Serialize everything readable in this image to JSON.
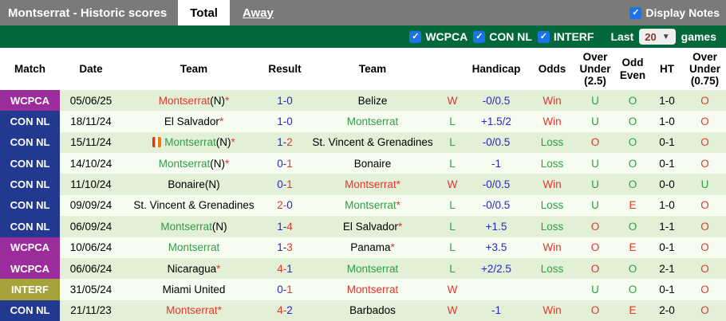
{
  "topbar": {
    "title": "Montserrat - Historic scores",
    "tab_total": "Total",
    "tab_away": "Away",
    "display_notes_label": "Display Notes"
  },
  "filterbar": {
    "checkboxes": [
      "WCPCA",
      "CON NL",
      "INTERF"
    ],
    "last_label": "Last",
    "games_count": "20",
    "games_label": "games"
  },
  "colors": {
    "red": "#e5352c",
    "green": "#2f9e44",
    "blue": "#2727cf",
    "topbar": "#7a7a7a",
    "filterbar": "#04693a",
    "checkbox": "#1a73e8",
    "badge-wcpca": "#9b2c9b",
    "badge-connl": "#213a8f",
    "badge-interf": "#a6a23c",
    "row-green": "#e1f0d6",
    "row-white": "#f7fcf1"
  },
  "table": {
    "headers": [
      "Match",
      "Date",
      "Team",
      "Result",
      "Team",
      "",
      "Handicap",
      "Odds",
      "Over Under (2.5)",
      "Odd Even",
      "HT",
      "Over Under (0.75)"
    ],
    "rows": [
      {
        "comp": {
          "label": "WCPCA",
          "color": "wcpca"
        },
        "date": "05/06/25",
        "home": {
          "name": "Montserrat",
          "suffix": "(N)",
          "star": true,
          "color": "red",
          "icon": false
        },
        "score": [
          {
            "t": "1",
            "c": "blue"
          },
          {
            "t": "0",
            "c": "blue"
          }
        ],
        "away": {
          "name": "Belize",
          "suffix": "",
          "star": false,
          "color": "black"
        },
        "wl": {
          "t": "W",
          "c": "red"
        },
        "handicap": {
          "t": "-0/0.5",
          "c": "blue"
        },
        "odds": {
          "t": "Win",
          "c": "red"
        },
        "ou25": {
          "t": "U",
          "c": "green"
        },
        "oe": {
          "t": "O",
          "c": "green"
        },
        "ht": {
          "t": "1-0",
          "c": "black"
        },
        "ou075": {
          "t": "O",
          "c": "red"
        }
      },
      {
        "comp": {
          "label": "CON NL",
          "color": "connl"
        },
        "date": "18/11/24",
        "home": {
          "name": "El Salvador",
          "suffix": "",
          "star": true,
          "color": "black",
          "icon": false
        },
        "score": [
          {
            "t": "1",
            "c": "blue"
          },
          {
            "t": "0",
            "c": "blue"
          }
        ],
        "away": {
          "name": "Montserrat",
          "suffix": "",
          "star": false,
          "color": "green"
        },
        "wl": {
          "t": "L",
          "c": "green"
        },
        "handicap": {
          "t": "+1.5/2",
          "c": "blue"
        },
        "odds": {
          "t": "Win",
          "c": "red"
        },
        "ou25": {
          "t": "U",
          "c": "green"
        },
        "oe": {
          "t": "O",
          "c": "green"
        },
        "ht": {
          "t": "1-0",
          "c": "black"
        },
        "ou075": {
          "t": "O",
          "c": "red"
        }
      },
      {
        "comp": {
          "label": "CON NL",
          "color": "connl"
        },
        "date": "15/11/24",
        "home": {
          "name": "Montserrat",
          "suffix": "(N)",
          "star": true,
          "color": "green",
          "icon": true
        },
        "score": [
          {
            "t": "1",
            "c": "blue"
          },
          {
            "t": "2",
            "c": "red"
          }
        ],
        "away": {
          "name": "St. Vincent & Grenadines",
          "suffix": "",
          "star": false,
          "color": "black"
        },
        "wl": {
          "t": "L",
          "c": "green"
        },
        "handicap": {
          "t": "-0/0.5",
          "c": "blue"
        },
        "odds": {
          "t": "Loss",
          "c": "green"
        },
        "ou25": {
          "t": "O",
          "c": "red"
        },
        "oe": {
          "t": "O",
          "c": "green"
        },
        "ht": {
          "t": "0-1",
          "c": "black"
        },
        "ou075": {
          "t": "O",
          "c": "red"
        }
      },
      {
        "comp": {
          "label": "CON NL",
          "color": "connl"
        },
        "date": "14/10/24",
        "home": {
          "name": "Montserrat",
          "suffix": "(N)",
          "star": true,
          "color": "green",
          "icon": false
        },
        "score": [
          {
            "t": "0",
            "c": "blue"
          },
          {
            "t": "1",
            "c": "red"
          }
        ],
        "away": {
          "name": "Bonaire",
          "suffix": "",
          "star": false,
          "color": "black"
        },
        "wl": {
          "t": "L",
          "c": "green"
        },
        "handicap": {
          "t": "-1",
          "c": "blue"
        },
        "odds": {
          "t": "Loss",
          "c": "green"
        },
        "ou25": {
          "t": "U",
          "c": "green"
        },
        "oe": {
          "t": "O",
          "c": "green"
        },
        "ht": {
          "t": "0-1",
          "c": "black"
        },
        "ou075": {
          "t": "O",
          "c": "red"
        }
      },
      {
        "comp": {
          "label": "CON NL",
          "color": "connl"
        },
        "date": "11/10/24",
        "home": {
          "name": "Bonaire",
          "suffix": "(N)",
          "star": false,
          "color": "black",
          "icon": false
        },
        "score": [
          {
            "t": "0",
            "c": "blue"
          },
          {
            "t": "1",
            "c": "red"
          }
        ],
        "away": {
          "name": "Montserrat",
          "suffix": "",
          "star": true,
          "color": "red"
        },
        "wl": {
          "t": "W",
          "c": "red"
        },
        "handicap": {
          "t": "-0/0.5",
          "c": "blue"
        },
        "odds": {
          "t": "Win",
          "c": "red"
        },
        "ou25": {
          "t": "U",
          "c": "green"
        },
        "oe": {
          "t": "O",
          "c": "green"
        },
        "ht": {
          "t": "0-0",
          "c": "black"
        },
        "ou075": {
          "t": "U",
          "c": "green"
        }
      },
      {
        "comp": {
          "label": "CON NL",
          "color": "connl"
        },
        "date": "09/09/24",
        "home": {
          "name": "St. Vincent & Grenadines",
          "suffix": "",
          "star": false,
          "color": "black",
          "icon": false
        },
        "score": [
          {
            "t": "2",
            "c": "red"
          },
          {
            "t": "0",
            "c": "blue"
          }
        ],
        "away": {
          "name": "Montserrat",
          "suffix": "",
          "star": true,
          "color": "green"
        },
        "wl": {
          "t": "L",
          "c": "green"
        },
        "handicap": {
          "t": "-0/0.5",
          "c": "blue"
        },
        "odds": {
          "t": "Loss",
          "c": "green"
        },
        "ou25": {
          "t": "U",
          "c": "green"
        },
        "oe": {
          "t": "E",
          "c": "red"
        },
        "ht": {
          "t": "1-0",
          "c": "black"
        },
        "ou075": {
          "t": "O",
          "c": "red"
        }
      },
      {
        "comp": {
          "label": "CON NL",
          "color": "connl"
        },
        "date": "06/09/24",
        "home": {
          "name": "Montserrat",
          "suffix": "(N)",
          "star": false,
          "color": "green",
          "icon": false
        },
        "score": [
          {
            "t": "1",
            "c": "blue"
          },
          {
            "t": "4",
            "c": "red"
          }
        ],
        "away": {
          "name": "El Salvador",
          "suffix": "",
          "star": true,
          "color": "black"
        },
        "wl": {
          "t": "L",
          "c": "green"
        },
        "handicap": {
          "t": "+1.5",
          "c": "blue"
        },
        "odds": {
          "t": "Loss",
          "c": "green"
        },
        "ou25": {
          "t": "O",
          "c": "red"
        },
        "oe": {
          "t": "O",
          "c": "green"
        },
        "ht": {
          "t": "1-1",
          "c": "black"
        },
        "ou075": {
          "t": "O",
          "c": "red"
        }
      },
      {
        "comp": {
          "label": "WCPCA",
          "color": "wcpca"
        },
        "date": "10/06/24",
        "home": {
          "name": "Montserrat",
          "suffix": "",
          "star": false,
          "color": "green",
          "icon": false
        },
        "score": [
          {
            "t": "1",
            "c": "blue"
          },
          {
            "t": "3",
            "c": "red"
          }
        ],
        "away": {
          "name": "Panama",
          "suffix": "",
          "star": true,
          "color": "black"
        },
        "wl": {
          "t": "L",
          "c": "green"
        },
        "handicap": {
          "t": "+3.5",
          "c": "blue"
        },
        "odds": {
          "t": "Win",
          "c": "red"
        },
        "ou25": {
          "t": "O",
          "c": "red"
        },
        "oe": {
          "t": "E",
          "c": "red"
        },
        "ht": {
          "t": "0-1",
          "c": "black"
        },
        "ou075": {
          "t": "O",
          "c": "red"
        }
      },
      {
        "comp": {
          "label": "WCPCA",
          "color": "wcpca"
        },
        "date": "06/06/24",
        "home": {
          "name": "Nicaragua",
          "suffix": "",
          "star": true,
          "color": "black",
          "icon": false
        },
        "score": [
          {
            "t": "4",
            "c": "red"
          },
          {
            "t": "1",
            "c": "blue"
          }
        ],
        "away": {
          "name": "Montserrat",
          "suffix": "",
          "star": false,
          "color": "green"
        },
        "wl": {
          "t": "L",
          "c": "green"
        },
        "handicap": {
          "t": "+2/2.5",
          "c": "blue"
        },
        "odds": {
          "t": "Loss",
          "c": "green"
        },
        "ou25": {
          "t": "O",
          "c": "red"
        },
        "oe": {
          "t": "O",
          "c": "green"
        },
        "ht": {
          "t": "2-1",
          "c": "black"
        },
        "ou075": {
          "t": "O",
          "c": "red"
        }
      },
      {
        "comp": {
          "label": "INTERF",
          "color": "interf"
        },
        "date": "31/05/24",
        "home": {
          "name": "Miami United",
          "suffix": "",
          "star": false,
          "color": "black",
          "icon": false
        },
        "score": [
          {
            "t": "0",
            "c": "blue"
          },
          {
            "t": "1",
            "c": "red"
          }
        ],
        "away": {
          "name": "Montserrat",
          "suffix": "",
          "star": false,
          "color": "red"
        },
        "wl": {
          "t": "W",
          "c": "red"
        },
        "handicap": {
          "t": "",
          "c": "blue"
        },
        "odds": {
          "t": "",
          "c": "black"
        },
        "ou25": {
          "t": "U",
          "c": "green"
        },
        "oe": {
          "t": "O",
          "c": "green"
        },
        "ht": {
          "t": "0-1",
          "c": "black"
        },
        "ou075": {
          "t": "O",
          "c": "red"
        }
      },
      {
        "comp": {
          "label": "CON NL",
          "color": "connl"
        },
        "date": "21/11/23",
        "home": {
          "name": "Montserrat",
          "suffix": "",
          "star": true,
          "color": "red",
          "icon": false
        },
        "score": [
          {
            "t": "4",
            "c": "red"
          },
          {
            "t": "2",
            "c": "blue"
          }
        ],
        "away": {
          "name": "Barbados",
          "suffix": "",
          "star": false,
          "color": "black"
        },
        "wl": {
          "t": "W",
          "c": "red"
        },
        "handicap": {
          "t": "-1",
          "c": "blue"
        },
        "odds": {
          "t": "Win",
          "c": "red"
        },
        "ou25": {
          "t": "O",
          "c": "red"
        },
        "oe": {
          "t": "E",
          "c": "red"
        },
        "ht": {
          "t": "2-0",
          "c": "black"
        },
        "ou075": {
          "t": "O",
          "c": "red"
        }
      }
    ]
  }
}
